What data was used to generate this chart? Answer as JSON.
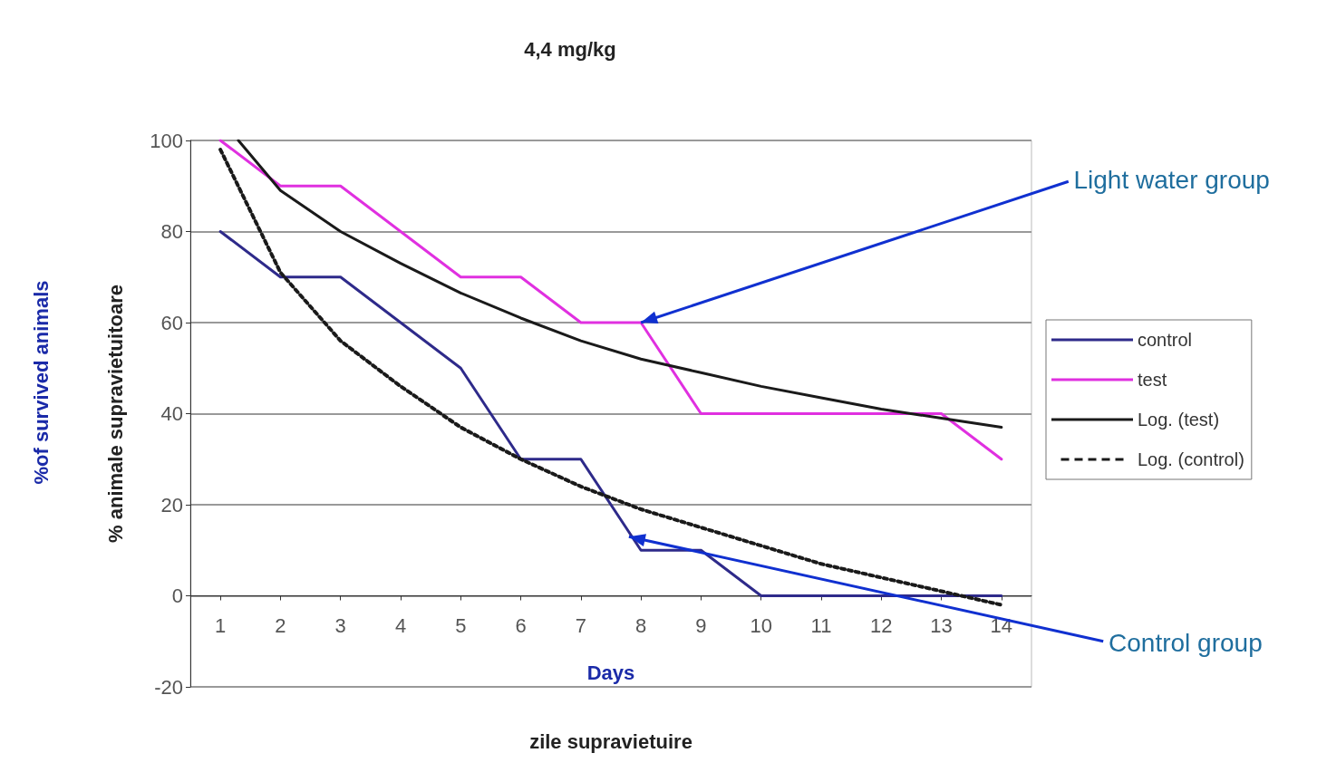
{
  "chart_data": {
    "type": "line",
    "title": "4,4 mg/kg",
    "xlabel": "zile supravietuire",
    "ylabel": "% animale supravietuitoare",
    "annotations": [
      {
        "text": "Light water group",
        "x": 8,
        "y": 60
      },
      {
        "text": "Control group",
        "x": 7.8,
        "y": 13
      },
      "Days",
      "%of survived animals"
    ],
    "x": [
      1,
      2,
      3,
      4,
      5,
      6,
      7,
      8,
      9,
      10,
      11,
      12,
      13,
      14
    ],
    "xlim": [
      0.5,
      14.5
    ],
    "xticks": [
      1,
      2,
      3,
      4,
      5,
      6,
      7,
      8,
      9,
      10,
      11,
      12,
      13,
      14
    ],
    "ylim": [
      -20,
      100
    ],
    "yticks": [
      -20,
      0,
      20,
      40,
      60,
      80,
      100
    ],
    "grid": "y",
    "legend": "right",
    "marker": "none",
    "series": [
      {
        "name": "control",
        "color": "#2e2a8a",
        "values": [
          80,
          70,
          70,
          60,
          50,
          30,
          30,
          10,
          10,
          0,
          0,
          0,
          0,
          0
        ]
      },
      {
        "name": "test",
        "color": "#e030e0",
        "values": [
          100,
          90,
          90,
          80,
          70,
          70,
          60,
          60,
          40,
          40,
          40,
          40,
          40,
          30
        ]
      },
      {
        "name": "Log. (test)",
        "color": "#1a1a1a",
        "line_style": "solid",
        "x": [
          1.3,
          2,
          3,
          4,
          5,
          6,
          7,
          8,
          9,
          10,
          11,
          12,
          13,
          14
        ],
        "values": [
          100,
          89,
          80,
          73,
          66.5,
          61,
          56,
          52,
          49,
          46,
          43.5,
          41,
          39,
          37
        ]
      },
      {
        "name": "Log. (control)",
        "color": "#1a1a1a",
        "line_style": "dotted",
        "x": [
          1,
          2,
          3,
          4,
          5,
          6,
          7,
          8,
          9,
          10,
          11,
          12,
          13,
          14
        ],
        "values": [
          98,
          71,
          56,
          46,
          37,
          30,
          24,
          19,
          15,
          11,
          7,
          4,
          1,
          -2
        ]
      }
    ]
  }
}
